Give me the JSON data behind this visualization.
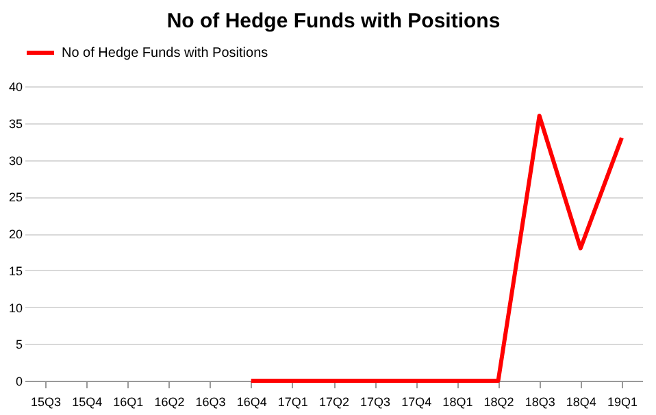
{
  "chart_data": {
    "type": "line",
    "title": "No of Hedge Funds with Positions",
    "categories": [
      "15Q3",
      "15Q4",
      "16Q1",
      "16Q2",
      "16Q3",
      "16Q4",
      "17Q1",
      "17Q2",
      "17Q3",
      "17Q4",
      "18Q1",
      "18Q2",
      "18Q3",
      "18Q4",
      "19Q1"
    ],
    "series": [
      {
        "name": "No of Hedge Funds with Positions",
        "color": "#ff0000",
        "values": [
          null,
          null,
          null,
          null,
          null,
          0,
          0,
          0,
          0,
          0,
          0,
          0,
          36,
          18,
          33
        ]
      }
    ],
    "ylim": [
      0,
      40
    ],
    "yticks": [
      0,
      5,
      10,
      15,
      20,
      25,
      30,
      35,
      40
    ],
    "grid": "y",
    "legend": "top",
    "marker": "none",
    "line_style": "solid"
  }
}
